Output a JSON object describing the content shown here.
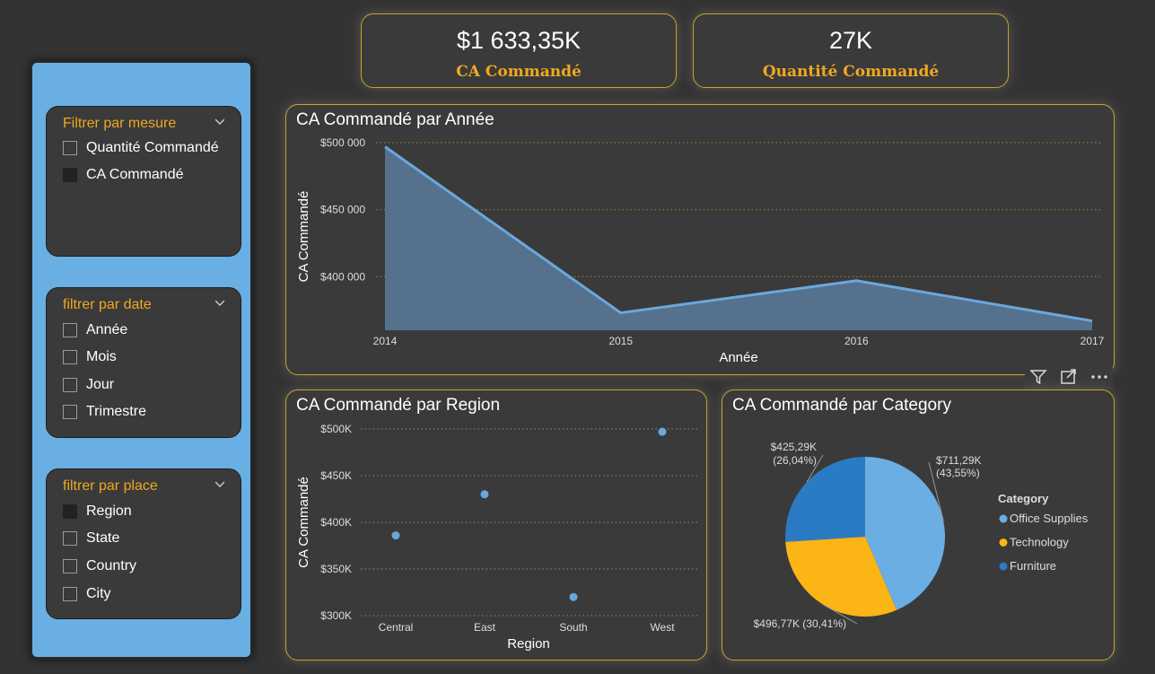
{
  "kpis": [
    {
      "value": "$1 633,35K",
      "label": "CA Commandé"
    },
    {
      "value": "27K",
      "label": "Quantité Commandé"
    }
  ],
  "slicers": {
    "measure": {
      "title": "Filtrer par mesure",
      "options": [
        {
          "label": "Quantité Commandé",
          "checked": false
        },
        {
          "label": "CA Commandé",
          "checked": true
        }
      ]
    },
    "date": {
      "title": "filtrer par date",
      "options": [
        {
          "label": "Année",
          "checked": false
        },
        {
          "label": "Mois",
          "checked": false
        },
        {
          "label": "Jour",
          "checked": false
        },
        {
          "label": "Trimestre",
          "checked": false
        }
      ]
    },
    "place": {
      "title": "filtrer par place",
      "options": [
        {
          "label": "Region",
          "checked": true
        },
        {
          "label": "State",
          "checked": false
        },
        {
          "label": "Country",
          "checked": false
        },
        {
          "label": "City",
          "checked": false
        }
      ]
    }
  },
  "colors": {
    "accent": "#f0a820",
    "line": "#6aa8dc",
    "sidebar": "#6aafe3",
    "panel_border": "#c9a227"
  },
  "chart_data": [
    {
      "type": "area",
      "title": "CA Commandé par Année",
      "xlabel": "Année",
      "ylabel": "CA Commandé",
      "categories": [
        "2014",
        "2015",
        "2016",
        "2017"
      ],
      "values": [
        497000,
        373000,
        397000,
        367000
      ],
      "yticks": [
        400000,
        450000,
        500000
      ],
      "ytick_labels": [
        "$400 000",
        "$450 000",
        "$500 000"
      ],
      "ylim": [
        360000,
        500000
      ],
      "grid": true
    },
    {
      "type": "scatter",
      "title": "CA Commandé par Region",
      "xlabel": "Region",
      "ylabel": "CA Commandé",
      "categories": [
        "Central",
        "East",
        "South",
        "West"
      ],
      "values": [
        386000,
        430000,
        320000,
        497000
      ],
      "yticks": [
        300000,
        350000,
        400000,
        450000,
        500000
      ],
      "ytick_labels": [
        "$300K",
        "$350K",
        "$400K",
        "$450K",
        "$500K"
      ],
      "ylim": [
        300000,
        500000
      ],
      "grid": true
    },
    {
      "type": "pie",
      "title": "CA Commandé par Category",
      "legend_title": "Category",
      "legend_position": "right",
      "slices": [
        {
          "name": "Office Supplies",
          "value": 711.29,
          "label": "$711,29K",
          "pct": "(43,55%)",
          "color": "#6aaee3"
        },
        {
          "name": "Technology",
          "value": 496.77,
          "label": "$496,77K (30,41%)",
          "pct": "",
          "color": "#fbb515"
        },
        {
          "name": "Furniture",
          "value": 425.29,
          "label": "$425,29K",
          "pct": "(26,04%)",
          "color": "#2b7bc4"
        }
      ]
    }
  ]
}
